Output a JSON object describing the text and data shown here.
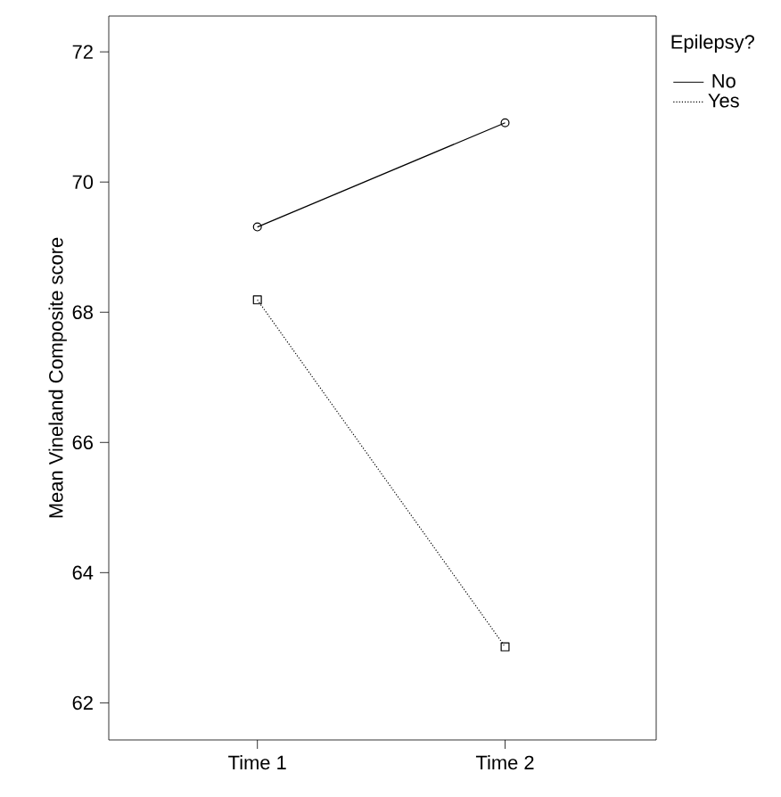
{
  "chart_data": {
    "type": "line",
    "ylabel": "Mean Vineland Composite score",
    "legend_title": "Epilepsy?",
    "categories": [
      "Time 1",
      "Time 2"
    ],
    "series": [
      {
        "name": "No",
        "color": "#000000",
        "values": [
          69.31,
          70.91
        ],
        "marker": "circle",
        "line_style": "solid"
      },
      {
        "name": "Yes",
        "color": "#000000",
        "values": [
          68.19,
          62.86
        ],
        "marker": "square",
        "line_style": "dotted"
      }
    ],
    "ylim": [
      61.43,
      72.55
    ],
    "yticks": [
      62,
      64,
      66,
      68,
      70,
      72
    ],
    "grid": false,
    "legend": "top right"
  }
}
